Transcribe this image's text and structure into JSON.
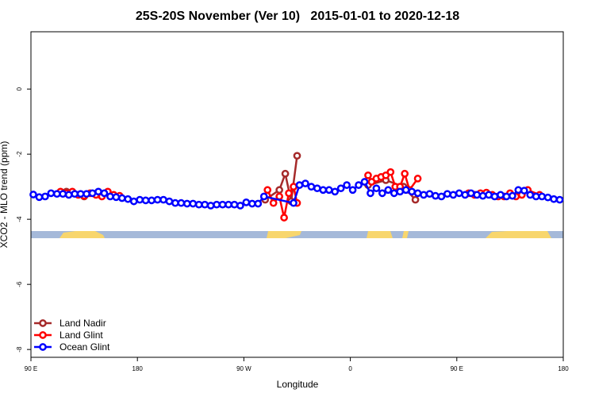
{
  "chart_data": {
    "type": "line",
    "title": "25S-20S November (Ver 10)   2015-01-01 to 2020-12-18",
    "xlabel": "Longitude",
    "ylabel": "XCO2 - MLO trend (ppm)",
    "xlim": [
      90,
      540
    ],
    "ylim": [
      -8.24,
      1.76
    ],
    "xticks": [
      {
        "value": 90,
        "label": "90 E"
      },
      180,
      {
        "value": 270,
        "label": "90 W"
      },
      {
        "value": 360,
        "label": "0"
      },
      {
        "value": 450,
        "label": "90 E"
      },
      {
        "value": 540,
        "label": "180"
      }
    ],
    "yticks": [
      -8,
      -6,
      -4,
      -2,
      0
    ],
    "legend": "bottom-left",
    "series": [
      {
        "name": "Land Nadir",
        "color": "#a52a2a",
        "x": [
          120,
          135,
          null,
          288,
          300,
          305,
          310,
          315,
          null,
          375,
          390,
          405,
          415
        ],
        "values": [
          -3.15,
          -3.3,
          null,
          -3.4,
          -3.1,
          -2.6,
          -3.45,
          -2.05,
          null,
          -2.95,
          -2.8,
          -3.0,
          -3.4
        ]
      },
      {
        "name": "Land Glint",
        "color": "#ff0000",
        "x": [
          115,
          120,
          125,
          130,
          135,
          140,
          145,
          150,
          155,
          160,
          165,
          null,
          290,
          295,
          300,
          304,
          308,
          312,
          315,
          null,
          375,
          378,
          382,
          386,
          390,
          394,
          398,
          402,
          406,
          410,
          417,
          null,
          460,
          465,
          470,
          475,
          480,
          485,
          490,
          495,
          500,
          505,
          510,
          520
        ],
        "values": [
          -3.15,
          -3.2,
          -3.15,
          -3.25,
          -3.28,
          -3.2,
          -3.25,
          -3.3,
          -3.15,
          -3.25,
          -3.28,
          null,
          -3.1,
          -3.5,
          -3.3,
          -3.95,
          -3.2,
          -3.0,
          -3.5,
          null,
          -2.65,
          -2.85,
          -2.75,
          -2.7,
          -2.65,
          -2.55,
          -3.0,
          -3.0,
          -2.6,
          -3.1,
          -2.75,
          null,
          -3.2,
          -3.25,
          -3.2,
          -3.18,
          -3.25,
          -3.3,
          -3.3,
          -3.2,
          -3.3,
          -3.25,
          -3.1,
          -3.25
        ]
      },
      {
        "name": "Ocean Glint",
        "color": "#0000ff",
        "x": [
          92,
          97,
          102,
          107,
          112,
          117,
          122,
          127,
          132,
          137,
          142,
          147,
          152,
          157,
          162,
          167,
          172,
          177,
          182,
          187,
          192,
          197,
          202,
          207,
          212,
          217,
          222,
          227,
          232,
          237,
          242,
          247,
          252,
          257,
          262,
          267,
          272,
          277,
          282,
          287,
          312,
          317,
          322,
          327,
          332,
          337,
          342,
          347,
          352,
          357,
          362,
          367,
          372,
          377,
          382,
          387,
          392,
          397,
          402,
          407,
          412,
          417,
          422,
          427,
          432,
          437,
          442,
          447,
          452,
          457,
          462,
          467,
          472,
          477,
          482,
          487,
          492,
          497,
          502,
          507,
          512,
          517,
          522,
          527,
          532,
          537
        ],
        "values": [
          -3.24,
          -3.32,
          -3.3,
          -3.2,
          -3.22,
          -3.22,
          -3.25,
          -3.22,
          -3.22,
          -3.22,
          -3.2,
          -3.15,
          -3.2,
          -3.3,
          -3.32,
          -3.35,
          -3.38,
          -3.45,
          -3.4,
          -3.42,
          -3.42,
          -3.4,
          -3.4,
          -3.45,
          -3.5,
          -3.5,
          -3.52,
          -3.52,
          -3.55,
          -3.55,
          -3.58,
          -3.55,
          -3.55,
          -3.55,
          -3.55,
          -3.58,
          -3.48,
          -3.52,
          -3.52,
          -3.3,
          -3.5,
          -2.95,
          -2.9,
          -3.0,
          -3.05,
          -3.1,
          -3.1,
          -3.15,
          -3.05,
          -2.95,
          -3.1,
          -2.95,
          -2.85,
          -3.2,
          -3.05,
          -3.2,
          -3.1,
          -3.2,
          -3.15,
          -3.1,
          -3.15,
          -3.2,
          -3.25,
          -3.22,
          -3.28,
          -3.3,
          -3.22,
          -3.25,
          -3.2,
          -3.25,
          -3.2,
          -3.25,
          -3.28,
          -3.25,
          -3.3,
          -3.25,
          -3.3,
          -3.28,
          -3.1,
          -3.12,
          -3.25,
          -3.3,
          -3.3,
          -3.33,
          -3.38,
          -3.4
        ]
      }
    ]
  }
}
